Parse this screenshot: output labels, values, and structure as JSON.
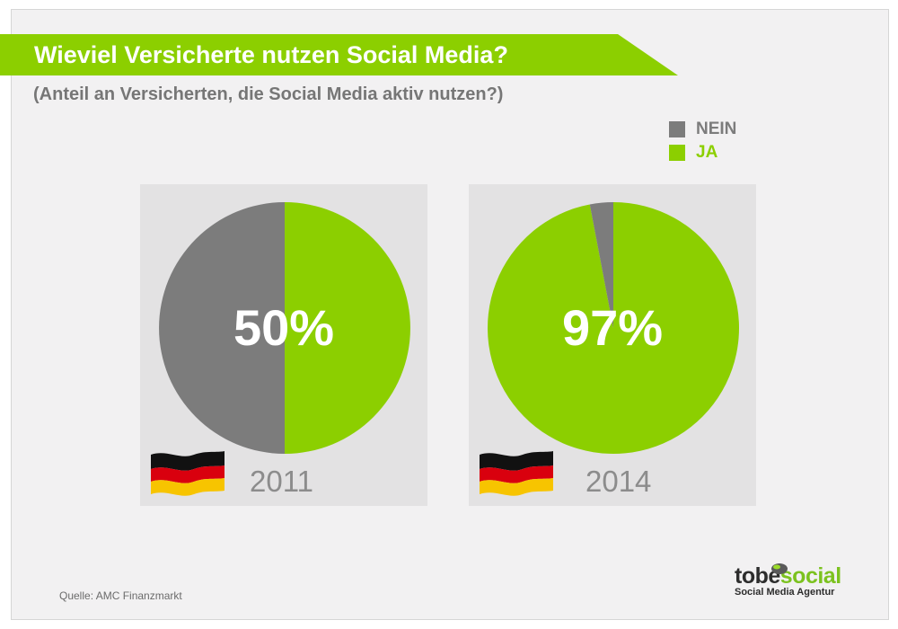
{
  "header": {
    "title": "Wieviel Versicherte nutzen Social Media?",
    "subtitle": "(Anteil an Versicherten, die Social Media aktiv nutzen?)"
  },
  "colors": {
    "ja": "#8ccf00",
    "nein": "#7c7c7c",
    "banner": "#8ccf00"
  },
  "legend": [
    {
      "label": "NEIN",
      "color": "#7c7c7c"
    },
    {
      "label": "JA",
      "color": "#8ccf00"
    }
  ],
  "chart_data": [
    {
      "type": "pie",
      "year": "2011",
      "center_label": "50%",
      "slices": [
        {
          "label": "JA",
          "value": 50
        },
        {
          "label": "NEIN",
          "value": 50
        }
      ]
    },
    {
      "type": "pie",
      "year": "2014",
      "center_label": "97%",
      "slices": [
        {
          "label": "JA",
          "value": 97
        },
        {
          "label": "NEIN",
          "value": 3
        }
      ]
    }
  ],
  "footer": {
    "source": "Quelle: AMC Finanzmarkt",
    "logo_part1": "tobe",
    "logo_part2": "social",
    "logo_tagline": "Social Media Agentur"
  }
}
